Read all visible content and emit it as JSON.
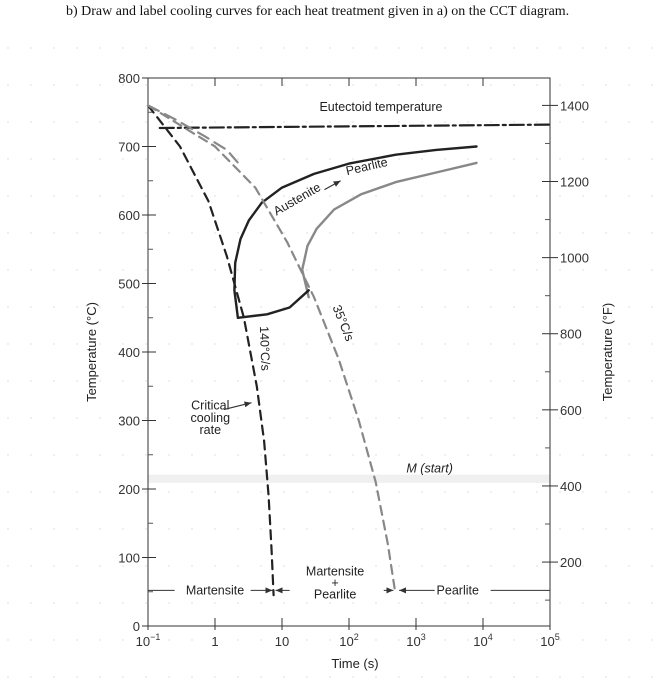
{
  "question": "b) Draw and label cooling curves for each heat treatment given in a) on the CCT diagram.",
  "chart_data": {
    "type": "line",
    "title": "",
    "xlabel": "Time (s)",
    "ylabel": "Temperature (°C)",
    "ylabel_right": "Temperature (°F)",
    "xscale": "log",
    "xlim": [
      0.1,
      100000
    ],
    "ylim": [
      0,
      800
    ],
    "x_ticks": [
      {
        "value": 0.1,
        "label": "10",
        "sup": "−1"
      },
      {
        "value": 1,
        "label": "1",
        "sup": ""
      },
      {
        "value": 10,
        "label": "10",
        "sup": ""
      },
      {
        "value": 100,
        "label": "10",
        "sup": "2"
      },
      {
        "value": 1000,
        "label": "10",
        "sup": "3"
      },
      {
        "value": 10000,
        "label": "10",
        "sup": "4"
      },
      {
        "value": 100000,
        "label": "10",
        "sup": "5"
      }
    ],
    "y_ticks": [
      0,
      100,
      200,
      300,
      400,
      500,
      600,
      700,
      800
    ],
    "y_right_ticks": [
      200,
      400,
      600,
      800,
      1000,
      1200,
      1400
    ],
    "grid": false,
    "series": [
      {
        "name": "Eutectoid temperature",
        "style": "dash-dot",
        "color": "#222222",
        "points": [
          [
            0.15,
            727
          ],
          [
            100000,
            732
          ]
        ]
      },
      {
        "name": "",
        "style": "solid",
        "color": "#222222",
        "points": [
          [
            2.2,
            450
          ],
          [
            1.95,
            490
          ],
          [
            2.0,
            530
          ],
          [
            2.4,
            565
          ],
          [
            3.2,
            592
          ],
          [
            5,
            618
          ],
          [
            10,
            640
          ],
          [
            30,
            660
          ],
          [
            100,
            675
          ],
          [
            500,
            688
          ],
          [
            2000,
            695
          ],
          [
            8000,
            700
          ]
        ]
      },
      {
        "name": "",
        "style": "solid",
        "color": "#888888",
        "points": [
          [
            25,
            480
          ],
          [
            20,
            520
          ],
          [
            24,
            555
          ],
          [
            33,
            580
          ],
          [
            60,
            608
          ],
          [
            150,
            630
          ],
          [
            500,
            648
          ],
          [
            2000,
            662
          ],
          [
            8000,
            676
          ]
        ]
      },
      {
        "name": "",
        "style": "solid",
        "color": "#222222",
        "points": [
          [
            2.2,
            450
          ],
          [
            6,
            455
          ],
          [
            13,
            465
          ],
          [
            25,
            490
          ]
        ]
      },
      {
        "name": "140°C/s",
        "style": "dashed",
        "color": "#222222",
        "points": [
          [
            0.1,
            760
          ],
          [
            0.3,
            700
          ],
          [
            0.8,
            620
          ],
          [
            1.5,
            540
          ],
          [
            2.7,
            450
          ],
          [
            4.2,
            350
          ],
          [
            5.4,
            270
          ],
          [
            6.3,
            190
          ],
          [
            7,
            110
          ],
          [
            7.5,
            45
          ]
        ]
      },
      {
        "name": "35°C/s",
        "style": "dashed",
        "color": "#888888",
        "points": [
          [
            0.1,
            760
          ],
          [
            1,
            700
          ],
          [
            4,
            640
          ],
          [
            12,
            560
          ],
          [
            30,
            480
          ],
          [
            70,
            390
          ],
          [
            140,
            300
          ],
          [
            250,
            210
          ],
          [
            380,
            120
          ],
          [
            480,
            55
          ]
        ]
      },
      {
        "name": "",
        "style": "long-dash",
        "color": "#888888",
        "points": [
          [
            0.1,
            760
          ],
          [
            0.25,
            740
          ],
          [
            0.7,
            715
          ],
          [
            1.5,
            695
          ],
          [
            2.5,
            670
          ]
        ]
      }
    ],
    "annotations": {
      "eutectoid": "Eutectoid temperature",
      "austenite": "Austenite",
      "pearlite_top": "Pearlite",
      "rate_140": "140°C/s",
      "rate_35": "35°C/s",
      "critical": [
        "Critical",
        "cooling",
        "rate"
      ],
      "m_start": "M (start)",
      "martensite_left": "Martensite",
      "martensite_mid": "Martensite",
      "plus": "+",
      "pearlite_mid": "Pearlite",
      "pearlite_right": "Pearlite"
    },
    "m_start_temperature": 215
  }
}
